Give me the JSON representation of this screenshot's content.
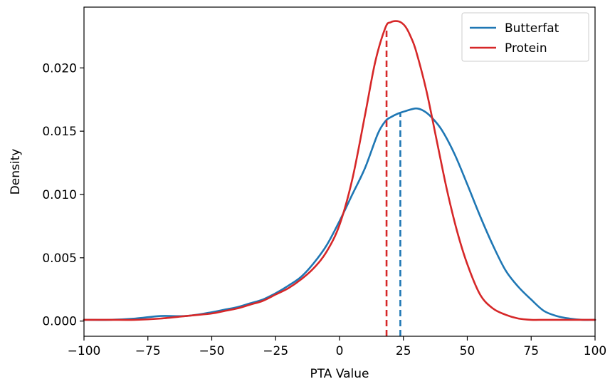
{
  "chart_data": {
    "type": "line",
    "title": "",
    "xlabel": "PTA Value",
    "ylabel": "Density",
    "xlim": [
      -100,
      100
    ],
    "ylim": [
      -0.0012,
      0.0248
    ],
    "xticks": [
      -100,
      -75,
      -50,
      -25,
      0,
      25,
      50,
      75,
      100
    ],
    "xtick_labels": [
      "−100",
      "−75",
      "−50",
      "−25",
      "0",
      "25",
      "50",
      "75",
      "100"
    ],
    "yticks": [
      0.0,
      0.005,
      0.01,
      0.015,
      0.02
    ],
    "ytick_labels": [
      "0.000",
      "0.005",
      "0.010",
      "0.015",
      "0.020"
    ],
    "grid": false,
    "legend_position": "top-right",
    "series": [
      {
        "name": "Butterfat",
        "color": "#1f77b4",
        "x": [
          -100,
          -90,
          -80,
          -70,
          -60,
          -50,
          -45,
          -40,
          -35,
          -30,
          -25,
          -20,
          -15,
          -10,
          -5,
          0,
          5,
          10,
          15,
          18,
          20,
          23,
          26,
          30,
          33,
          36,
          40,
          45,
          50,
          55,
          60,
          65,
          70,
          75,
          80,
          85,
          90,
          95,
          100
        ],
        "y": [
          0.0001,
          0.0001,
          0.0002,
          0.0004,
          0.0004,
          0.0007,
          0.0009,
          0.0011,
          0.0014,
          0.0017,
          0.0022,
          0.0028,
          0.0035,
          0.0046,
          0.006,
          0.0079,
          0.01,
          0.0121,
          0.0148,
          0.0158,
          0.0161,
          0.0164,
          0.0166,
          0.0168,
          0.0166,
          0.0161,
          0.0151,
          0.0132,
          0.0108,
          0.0083,
          0.006,
          0.004,
          0.0027,
          0.0017,
          0.0008,
          0.0004,
          0.0002,
          0.0001,
          0.0001
        ]
      },
      {
        "name": "Protein",
        "color": "#d62728",
        "x": [
          -100,
          -90,
          -80,
          -70,
          -60,
          -50,
          -45,
          -40,
          -35,
          -30,
          -25,
          -20,
          -15,
          -10,
          -5,
          0,
          5,
          10,
          14,
          18,
          20,
          22,
          24,
          26,
          28,
          30,
          34,
          38,
          42,
          46,
          50,
          55,
          60,
          65,
          70,
          75,
          80,
          85,
          90,
          95,
          100
        ],
        "y": [
          0.0001,
          0.0001,
          0.0001,
          0.0002,
          0.0004,
          0.0006,
          0.0008,
          0.001,
          0.0013,
          0.0016,
          0.0021,
          0.0026,
          0.0033,
          0.0042,
          0.0055,
          0.0076,
          0.0112,
          0.0163,
          0.0205,
          0.0232,
          0.0236,
          0.0237,
          0.0236,
          0.0232,
          0.0224,
          0.0213,
          0.0182,
          0.0143,
          0.0104,
          0.0071,
          0.0045,
          0.0021,
          0.001,
          0.0005,
          0.0002,
          0.0001,
          0.0001,
          0.0001,
          0.0001,
          0.0001,
          0.0001
        ]
      }
    ],
    "mean_lines": [
      {
        "series": "Butterfat",
        "x": 23.8,
        "y_top": 0.0164,
        "color": "#1f77b4"
      },
      {
        "series": "Protein",
        "x": 18.4,
        "y_top": 0.0231,
        "color": "#d62728"
      }
    ]
  }
}
